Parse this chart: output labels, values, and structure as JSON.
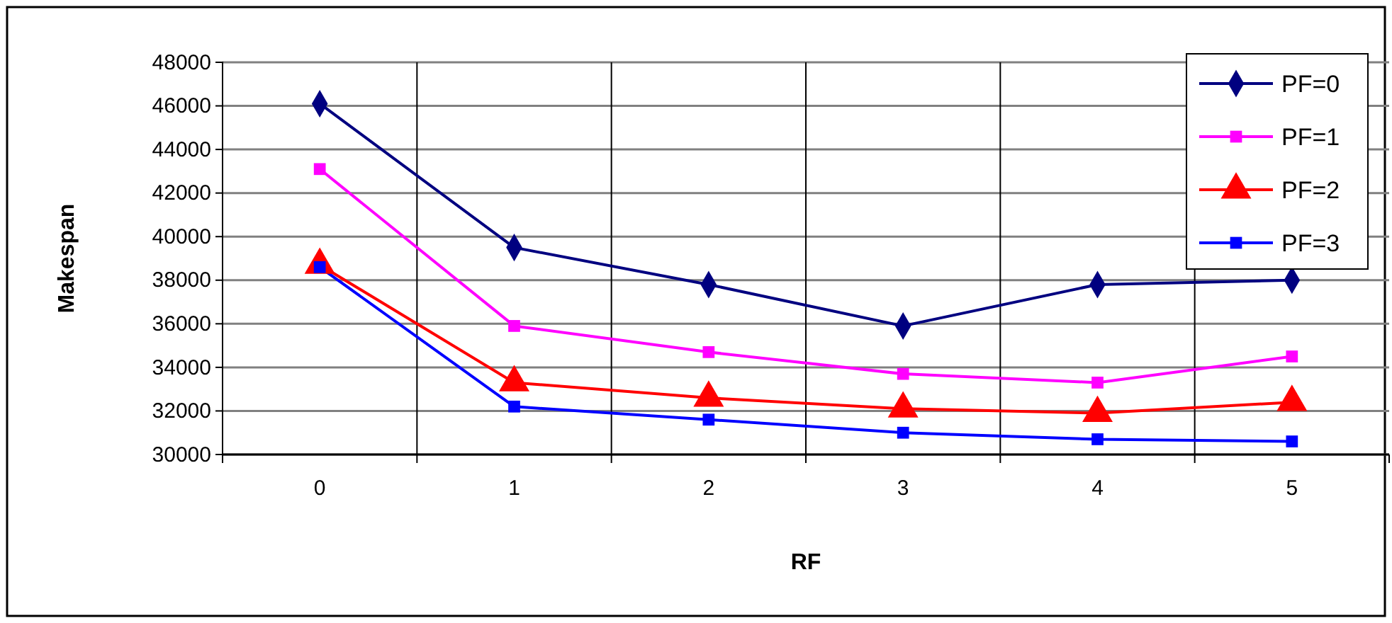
{
  "chart_data": {
    "type": "line",
    "xlabel": "RF",
    "ylabel": "Makespan",
    "categories": [
      "0",
      "1",
      "2",
      "3",
      "4",
      "5"
    ],
    "ylim": [
      30000,
      48000
    ],
    "yticks": [
      30000,
      32000,
      34000,
      36000,
      38000,
      40000,
      42000,
      44000,
      46000,
      48000
    ],
    "grid": true,
    "legend": "top right",
    "series": [
      {
        "name": "PF=0",
        "color": "#000080",
        "marker": "diamond",
        "values": [
          46100,
          39500,
          37800,
          35900,
          37800,
          38000
        ]
      },
      {
        "name": "PF=1",
        "color": "#ff00ff",
        "marker": "square",
        "values": [
          43100,
          35900,
          34700,
          33700,
          33300,
          34500
        ]
      },
      {
        "name": "PF=2",
        "color": "#ff0000",
        "marker": "triangle",
        "values": [
          38700,
          33300,
          32600,
          32100,
          31900,
          32400
        ]
      },
      {
        "name": "PF=3",
        "color": "#0000ff",
        "marker": "square",
        "values": [
          38600,
          32200,
          31600,
          31000,
          30700,
          30600
        ]
      }
    ]
  }
}
